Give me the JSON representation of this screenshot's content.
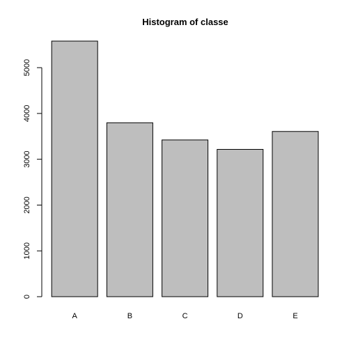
{
  "chart_data": {
    "type": "bar",
    "title": "Histogram of classe",
    "xlabel": "",
    "ylabel": "",
    "categories": [
      "A",
      "B",
      "C",
      "D",
      "E"
    ],
    "values": [
      5580,
      3797,
      3422,
      3216,
      3607
    ],
    "ylim": [
      0,
      5580
    ],
    "yticks": [
      0,
      1000,
      2000,
      3000,
      4000,
      5000
    ],
    "ytick_labels": [
      "0",
      "1000",
      "2000",
      "3000",
      "4000",
      "5000"
    ],
    "grid": false,
    "bar_color": "#bebebe",
    "border_color": "#000000"
  }
}
